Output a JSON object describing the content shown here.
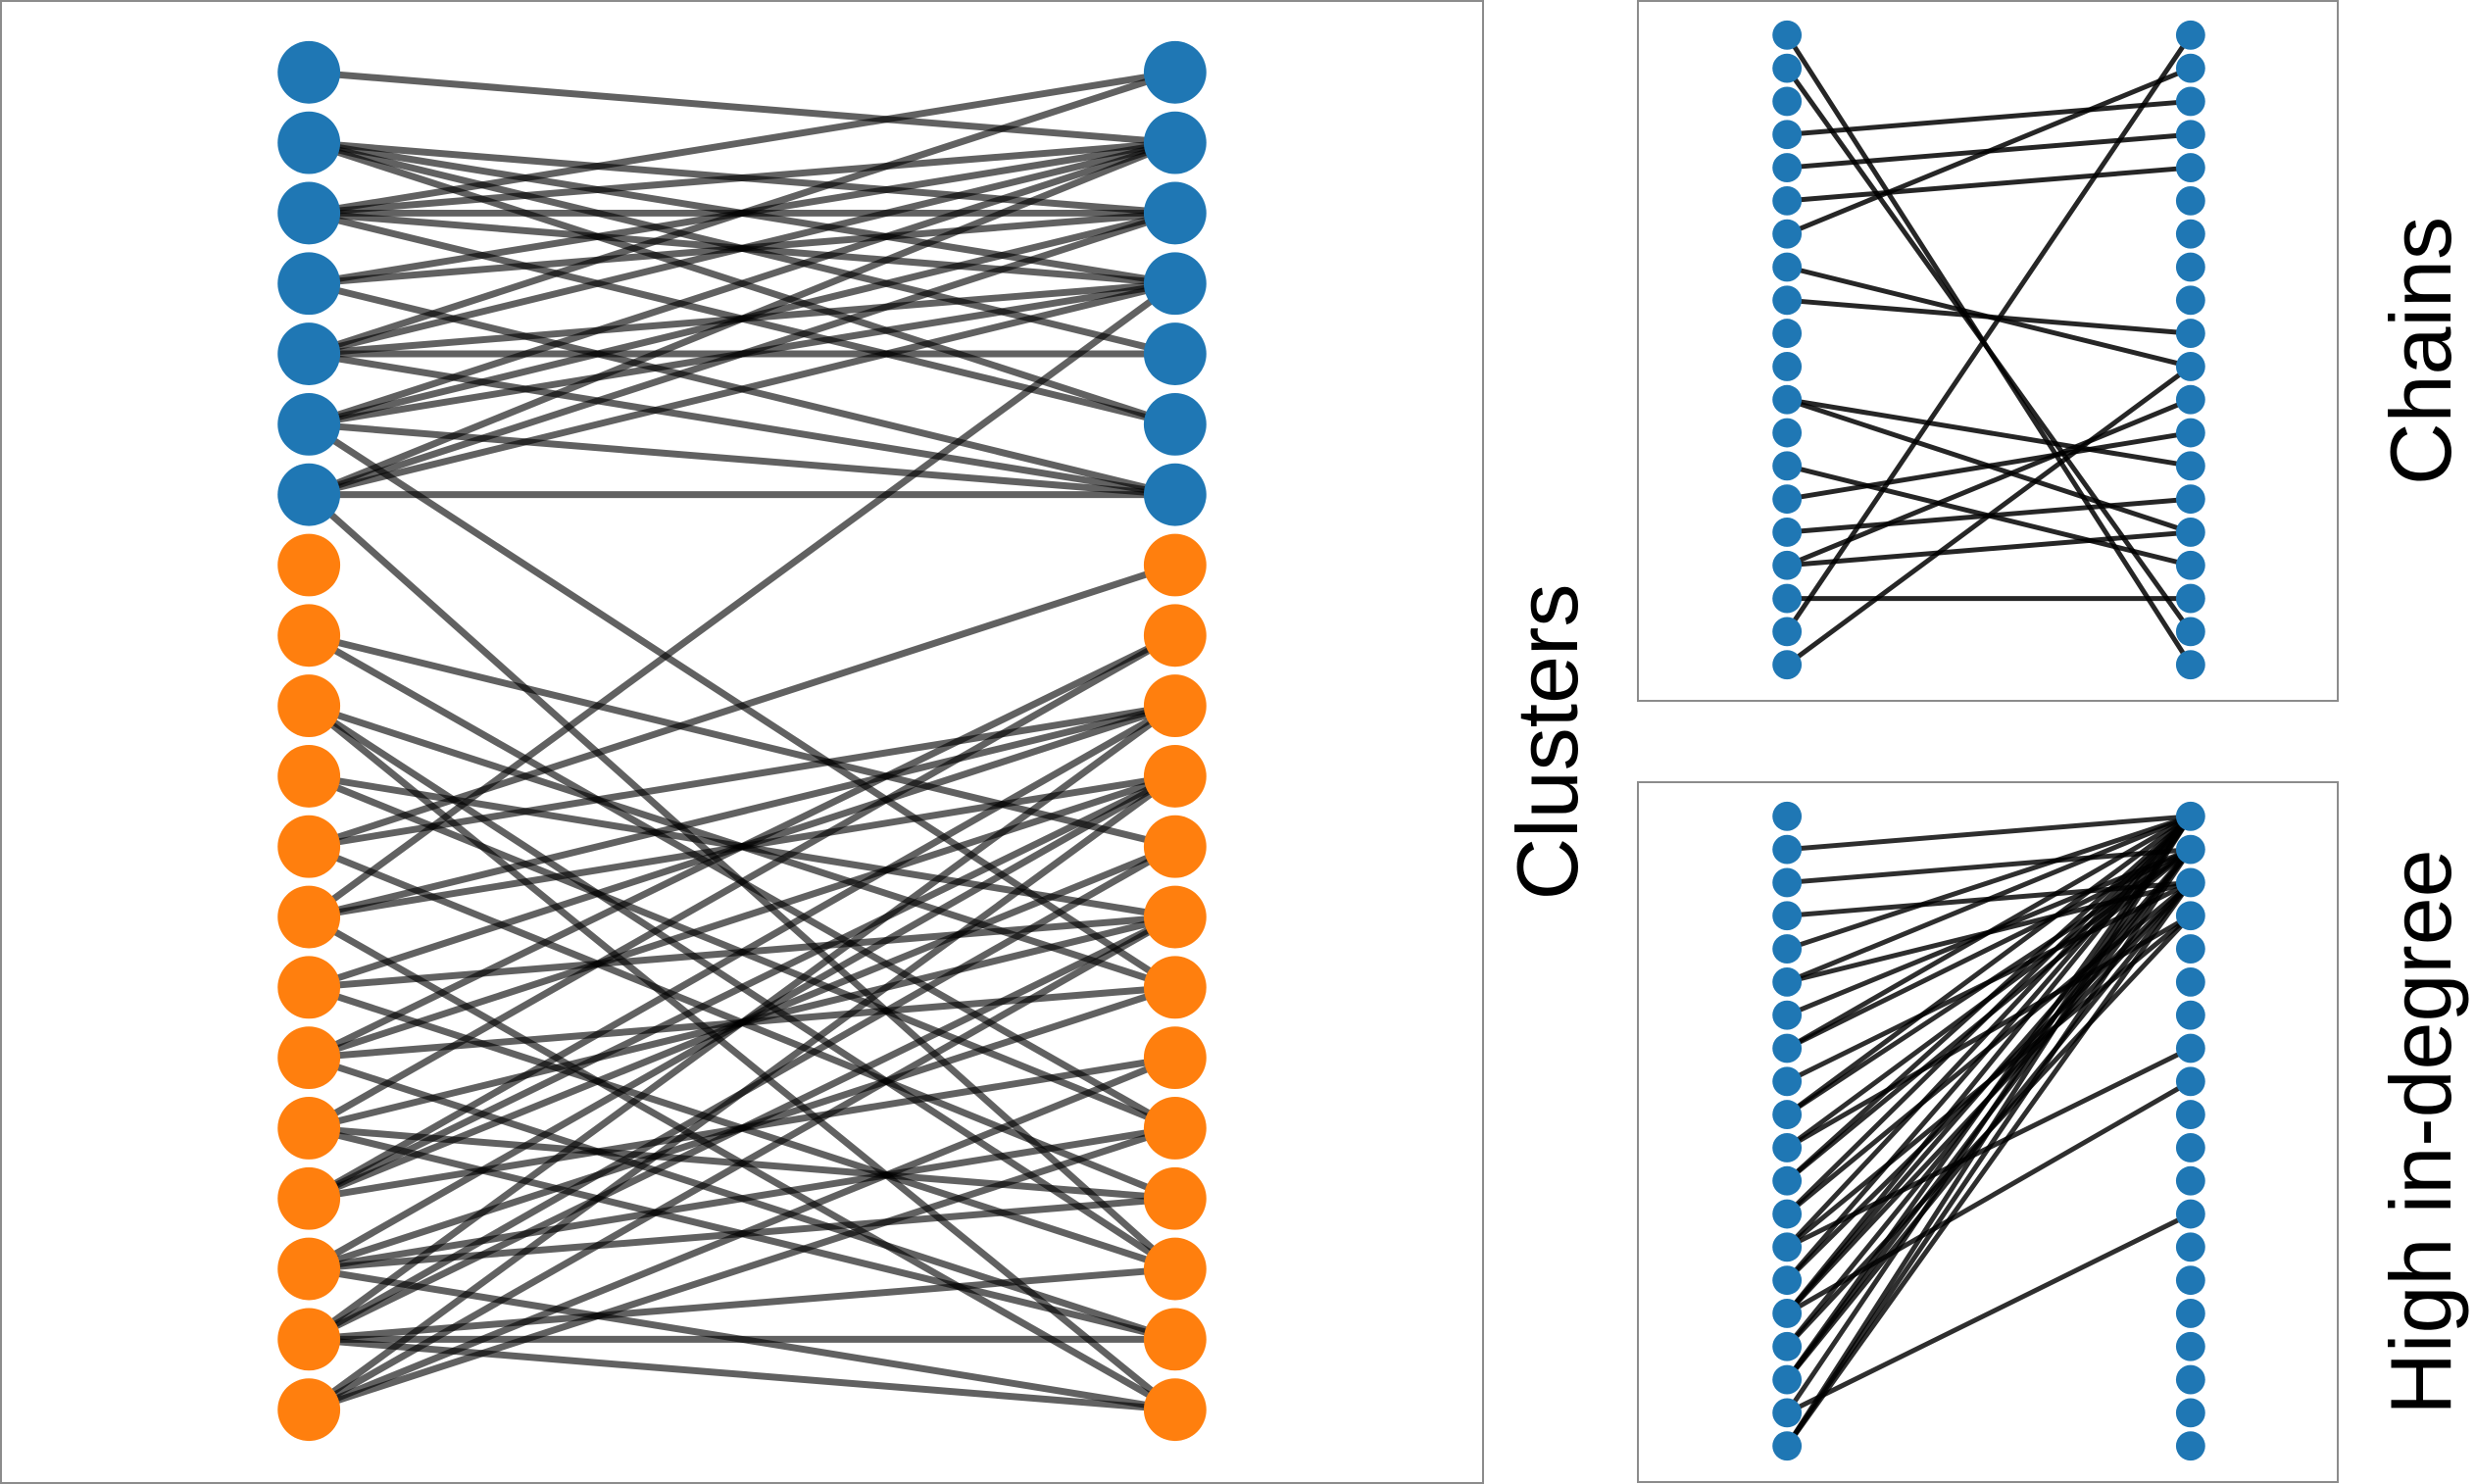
{
  "colors": {
    "blue": "#1f77b4",
    "orange": "#ff7f0e",
    "edge": "#000000"
  },
  "graphs": [
    {
      "id": "clusters",
      "label": "Clusters",
      "nodes_per_side": 20,
      "left_colors": [
        "blue",
        "blue",
        "blue",
        "blue",
        "blue",
        "blue",
        "blue",
        "orange",
        "orange",
        "orange",
        "orange",
        "orange",
        "orange",
        "orange",
        "orange",
        "orange",
        "orange",
        "orange",
        "orange",
        "orange"
      ],
      "right_colors": [
        "blue",
        "blue",
        "blue",
        "blue",
        "blue",
        "blue",
        "blue",
        "orange",
        "orange",
        "orange",
        "orange",
        "orange",
        "orange",
        "orange",
        "orange",
        "orange",
        "orange",
        "orange",
        "orange",
        "orange"
      ],
      "edges": [
        [
          0,
          1
        ],
        [
          1,
          2
        ],
        [
          1,
          3
        ],
        [
          1,
          4
        ],
        [
          1,
          5
        ],
        [
          2,
          0
        ],
        [
          2,
          1
        ],
        [
          2,
          2
        ],
        [
          2,
          3
        ],
        [
          2,
          5
        ],
        [
          3,
          1
        ],
        [
          3,
          2
        ],
        [
          3,
          6
        ],
        [
          4,
          0
        ],
        [
          4,
          1
        ],
        [
          4,
          3
        ],
        [
          4,
          4
        ],
        [
          4,
          6
        ],
        [
          5,
          1
        ],
        [
          5,
          2
        ],
        [
          5,
          6
        ],
        [
          5,
          3
        ],
        [
          6,
          1
        ],
        [
          6,
          2
        ],
        [
          6,
          3
        ],
        [
          6,
          6
        ],
        [
          5,
          13
        ],
        [
          6,
          17
        ],
        [
          8,
          15
        ],
        [
          8,
          11
        ],
        [
          9,
          13
        ],
        [
          9,
          19
        ],
        [
          9,
          17
        ],
        [
          10,
          12
        ],
        [
          10,
          15
        ],
        [
          11,
          16
        ],
        [
          11,
          9
        ],
        [
          11,
          7
        ],
        [
          12,
          19
        ],
        [
          12,
          9
        ],
        [
          12,
          3
        ],
        [
          12,
          10
        ],
        [
          13,
          12
        ],
        [
          13,
          17
        ],
        [
          13,
          9
        ],
        [
          14,
          10
        ],
        [
          14,
          13
        ],
        [
          14,
          18
        ],
        [
          14,
          8
        ],
        [
          15,
          16
        ],
        [
          15,
          18
        ],
        [
          15,
          12
        ],
        [
          15,
          8
        ],
        [
          16,
          14
        ],
        [
          16,
          11
        ],
        [
          16,
          10
        ],
        [
          16,
          9
        ],
        [
          17,
          15
        ],
        [
          17,
          13
        ],
        [
          17,
          19
        ],
        [
          17,
          10
        ],
        [
          17,
          16
        ],
        [
          18,
          9
        ],
        [
          18,
          18
        ],
        [
          18,
          17
        ],
        [
          18,
          11
        ],
        [
          18,
          12
        ],
        [
          18,
          19
        ],
        [
          19,
          10
        ],
        [
          19,
          15
        ],
        [
          19,
          12
        ],
        [
          19,
          14
        ]
      ]
    },
    {
      "id": "chains",
      "label": "Chains",
      "nodes_per_side": 20,
      "left_colors": "blue",
      "right_colors": "blue",
      "edges": [
        [
          0,
          19
        ],
        [
          1,
          18
        ],
        [
          3,
          2
        ],
        [
          4,
          3
        ],
        [
          5,
          4
        ],
        [
          6,
          1
        ],
        [
          7,
          10
        ],
        [
          8,
          9
        ],
        [
          11,
          15
        ],
        [
          11,
          13
        ],
        [
          13,
          16
        ],
        [
          14,
          12
        ],
        [
          15,
          14
        ],
        [
          16,
          11
        ],
        [
          16,
          15
        ],
        [
          17,
          17
        ],
        [
          18,
          0
        ],
        [
          19,
          10
        ]
      ]
    },
    {
      "id": "indegree",
      "label": "High in-degree",
      "nodes_per_side": 20,
      "left_colors": "blue",
      "right_colors": "blue",
      "edges": [
        [
          1,
          0
        ],
        [
          2,
          1
        ],
        [
          3,
          2
        ],
        [
          4,
          0
        ],
        [
          5,
          2
        ],
        [
          6,
          1
        ],
        [
          7,
          0
        ],
        [
          8,
          2
        ],
        [
          9,
          1
        ],
        [
          10,
          3
        ],
        [
          11,
          0
        ],
        [
          12,
          2
        ],
        [
          13,
          7
        ],
        [
          14,
          2
        ],
        [
          15,
          8
        ],
        [
          16,
          1
        ],
        [
          17,
          0
        ],
        [
          18,
          12
        ],
        [
          19,
          1
        ],
        [
          11,
          1
        ],
        [
          12,
          0
        ],
        [
          13,
          3
        ],
        [
          14,
          0
        ],
        [
          15,
          1
        ],
        [
          16,
          3
        ],
        [
          17,
          1
        ],
        [
          18,
          0
        ],
        [
          19,
          2
        ],
        [
          5,
          0
        ],
        [
          7,
          1
        ],
        [
          9,
          0
        ],
        [
          10,
          1
        ],
        [
          13,
          0
        ],
        [
          15,
          0
        ],
        [
          15,
          2
        ],
        [
          17,
          2
        ],
        [
          19,
          0
        ]
      ]
    }
  ]
}
